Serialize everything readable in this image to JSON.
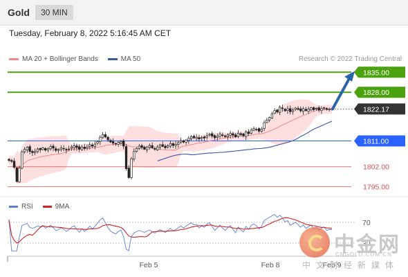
{
  "header": {
    "symbol": "Gold",
    "timeframe": "30 MIN"
  },
  "datetime": "Tuesday, February 8, 2022 5:16:45 AM CET",
  "legend": {
    "bb_label": "MA 20 + Bollinger Bands",
    "ma50_label": "MA 50",
    "research": "Research © 2022 Trading Central"
  },
  "rsi_legend": {
    "rsi_label": "RSI",
    "ma9_label": "9MA"
  },
  "colors": {
    "up_target": "#4ca10e",
    "current": "#333333",
    "pivot": "#2962ff",
    "support": "#d45050",
    "bb_fill": "#fdd9d9",
    "ma20": "#e88",
    "ma50": "#3a55a4",
    "rsi": "#5b7fd6",
    "rsi_ma": "#d32222",
    "arrow": "#2b63a8"
  },
  "watermark": {
    "name": "中金网",
    "url": "CNGOLD.COM.CN",
    "sub": "中文财经新媒体"
  },
  "chart_data": {
    "type": "candlestick",
    "title": "Gold",
    "timeframe": "30 MIN",
    "y_range": [
      1792.5,
      1837.0
    ],
    "x_labels": [
      "Feb 5",
      "Feb 8",
      "Feb 9"
    ],
    "levels": [
      {
        "value": 1835.0,
        "label": "1835.00",
        "role": "resistance",
        "color": "#4ca10e"
      },
      {
        "value": 1828.0,
        "label": "1828.00",
        "role": "resistance",
        "color": "#4ca10e"
      },
      {
        "value": 1822.17,
        "label": "1822.17",
        "role": "current",
        "color": "#333333"
      },
      {
        "value": 1811.0,
        "label": "1811.00",
        "role": "pivot",
        "color": "#2962ff"
      },
      {
        "value": 1802.0,
        "label": "1802.00",
        "role": "support",
        "color": "#d45050"
      },
      {
        "value": 1795.0,
        "label": "1795.00",
        "role": "support",
        "color": "#d45050"
      }
    ],
    "close": [
      1804.2,
      1803.9,
      1801.8,
      1796.8,
      1801.5,
      1807.2,
      1808.1,
      1808.8,
      1807.3,
      1806.9,
      1807.4,
      1808.2,
      1807.9,
      1808.6,
      1807.8,
      1808.4,
      1809.1,
      1808.5,
      1807.7,
      1808.0,
      1808.6,
      1808.3,
      1807.8,
      1808.2,
      1808.9,
      1809.3,
      1808.7,
      1808.1,
      1808.9,
      1808.4,
      1808.9,
      1809.7,
      1809.2,
      1809.9,
      1810.8,
      1812.3,
      1813.2,
      1812.4,
      1811.4,
      1810.6,
      1810.2,
      1809.9,
      1810.5,
      1810.8,
      1809.2,
      1801.3,
      1798.2,
      1804.8,
      1807.3,
      1808.4,
      1809.2,
      1808.7,
      1808.1,
      1808.9,
      1809.4,
      1808.6,
      1808.1,
      1808.9,
      1809.6,
      1809.1,
      1808.6,
      1809.3,
      1810.1,
      1809.4,
      1809.8,
      1810.4,
      1811.1,
      1810.6,
      1811.3,
      1811.9,
      1812.5,
      1812.1,
      1812.3,
      1811.7,
      1812.2,
      1812.0,
      1812.8,
      1813.3,
      1812.7,
      1812.1,
      1812.6,
      1813.4,
      1812.9,
      1812.5,
      1813.1,
      1813.6,
      1813.0,
      1812.4,
      1813.7,
      1813.2,
      1812.8,
      1814.2,
      1813.6,
      1814.8,
      1815.3,
      1815.0,
      1814.4,
      1815.1,
      1817.4,
      1818.3,
      1819.2,
      1820.5,
      1821.6,
      1821.1,
      1822.8,
      1822.3,
      1821.5,
      1822.2,
      1821.2,
      1821.8,
      1822.5,
      1822.0,
      1821.5,
      1822.3,
      1821.6,
      1822.1,
      1822.6,
      1821.9,
      1822.4,
      1821.8,
      1822.3,
      1822.6,
      1822.0,
      1822.2,
      1822.17
    ],
    "ma50": [
      1807.0,
      1807.1,
      1807.2,
      1807.3,
      1807.4,
      1807.5,
      1807.6,
      1807.7,
      1807.8,
      1807.9,
      1808.0,
      1808.1,
      1808.2,
      1808.3,
      1808.35,
      1808.4,
      1808.5,
      1808.6,
      1808.8,
      1809.0,
      1809.3,
      1809.5,
      1809.8,
      1810.0,
      1810.3,
      1810.5,
      1810.8,
      1811.1,
      1811.5,
      1812.0,
      1812.6,
      1813.0,
      1813.5,
      1814.0,
      1814.6,
      1815.1,
      1815.5,
      1815.9,
      1816.3,
      1816.7,
      1817.1,
      1817.5,
      1817.9
    ],
    "ma50_start_index": 82,
    "ma50_pre": [
      1804.0,
      1804.3,
      1804.6,
      1804.9,
      1805.2,
      1805.5,
      1805.8,
      1806.0,
      1806.2,
      1806.3,
      1806.4,
      1806.4,
      1806.3,
      1806.2,
      1806.2,
      1806.3,
      1806.4,
      1806.5,
      1806.6,
      1806.7,
      1806.8,
      1806.8,
      1806.9,
      1806.9,
      1807.0
    ],
    "rsi_levels": [
      70,
      30
    ],
    "rsi_range": [
      10,
      90
    ]
  }
}
